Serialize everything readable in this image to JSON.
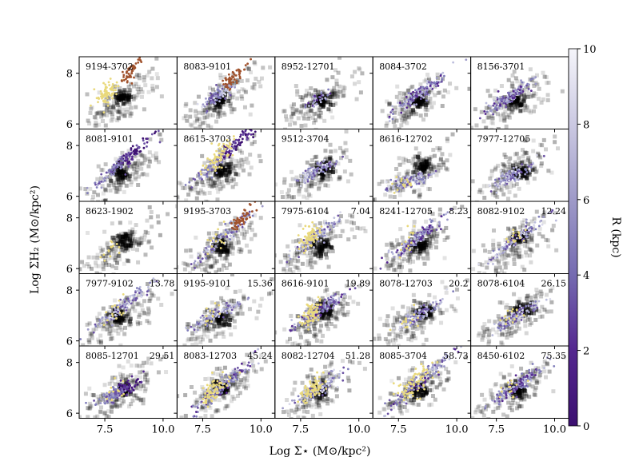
{
  "figure": {
    "xlabel": "Log Σ⋆ (M⊙/kpc²)",
    "ylabel": "Log ΣH₂ (M⊙/kpc²)",
    "colorbar_label": "R (kpc)",
    "colorbar_ticks": [
      "0",
      "2",
      "4",
      "6",
      "8",
      "10"
    ],
    "colors": {
      "background_density": "#000000",
      "highlight_yellow": "#e9d97c",
      "highlight_brown": "#a0522d",
      "colormap_low": "#3b0f70",
      "colormap_high": "#f5f5fa"
    }
  },
  "chart_data": {
    "type": "scatter",
    "layout": "5x5 grid of panels sharing axes",
    "xlim": [
      6.4,
      10.6
    ],
    "ylim": [
      5.8,
      8.65
    ],
    "xticks": [
      "7.5",
      "10.0"
    ],
    "yticks": [
      "6",
      "8"
    ],
    "colorbar": {
      "quantity": "R (kpc)",
      "range": [
        0,
        10
      ],
      "colormap": "purples (dark = 0, light = 10)"
    },
    "panels": [
      {
        "id": "9194-3702",
        "value": "",
        "center": [
          7.9,
          7.3
        ],
        "slope": 0.9,
        "width": 0.45,
        "dense": [
          8.2,
          7.0
        ],
        "brown": true,
        "yellow": "strong",
        "purple": "none"
      },
      {
        "id": "8083-9101",
        "value": "",
        "center": [
          8.1,
          7.1
        ],
        "slope": 0.6,
        "width": 0.35,
        "dense": [
          8.2,
          6.9
        ],
        "brown": true,
        "yellow": "none",
        "purple": "light"
      },
      {
        "id": "8952-12701",
        "value": "",
        "center": [
          8.2,
          6.95
        ],
        "slope": 0.5,
        "width": 0.3,
        "dense": [
          8.4,
          6.9
        ],
        "brown": false,
        "yellow": "none",
        "purple": "sparse"
      },
      {
        "id": "8084-3702",
        "value": "",
        "center": [
          8.4,
          7.2
        ],
        "slope": 0.7,
        "width": 0.55,
        "dense": [
          8.4,
          6.9
        ],
        "brown": false,
        "yellow": "none",
        "purple": "medium"
      },
      {
        "id": "8156-3701",
        "value": "",
        "center": [
          8.1,
          7.1
        ],
        "slope": 0.6,
        "width": 0.5,
        "dense": [
          8.3,
          6.9
        ],
        "brown": false,
        "yellow": "none",
        "purple": "medium"
      },
      {
        "id": "8081-9101",
        "value": "",
        "center": [
          8.3,
          7.4
        ],
        "slope": 0.8,
        "width": 0.55,
        "dense": [
          8.2,
          6.9
        ],
        "brown": false,
        "yellow": "none",
        "purple": "dark"
      },
      {
        "id": "8615-3703",
        "value": "",
        "center": [
          8.4,
          7.6
        ],
        "slope": 0.8,
        "width": 0.7,
        "dense": [
          8.4,
          7.0
        ],
        "brown": false,
        "yellow": "strong",
        "purple": "dark"
      },
      {
        "id": "9512-3704",
        "value": "",
        "center": [
          8.2,
          7.0
        ],
        "slope": 0.5,
        "width": 0.4,
        "dense": [
          8.5,
          7.1
        ],
        "brown": false,
        "yellow": "none",
        "purple": "light"
      },
      {
        "id": "8616-12702",
        "value": "",
        "center": [
          8.0,
          6.6
        ],
        "slope": 0.3,
        "width": 0.5,
        "dense": [
          8.6,
          7.2
        ],
        "brown": false,
        "yellow": "few",
        "purple": "light"
      },
      {
        "id": "7977-12705",
        "value": "",
        "center": [
          8.1,
          6.8
        ],
        "slope": 0.5,
        "width": 0.45,
        "dense": [
          8.6,
          7.0
        ],
        "brown": false,
        "yellow": "none",
        "purple": "light"
      },
      {
        "id": "8623-1902",
        "value": "",
        "center": [
          8.0,
          6.8
        ],
        "slope": 0.4,
        "width": 0.3,
        "dense": [
          8.3,
          7.1
        ],
        "brown": false,
        "yellow": "few",
        "purple": "none"
      },
      {
        "id": "9195-3703",
        "value": "",
        "center": [
          8.5,
          7.3
        ],
        "slope": 0.8,
        "width": 0.65,
        "dense": [
          8.3,
          6.9
        ],
        "brown": true,
        "yellow": "few",
        "purple": "light"
      },
      {
        "id": "7975-6104",
        "value": "7.04",
        "center": [
          8.2,
          7.3
        ],
        "slope": 0.8,
        "width": 0.55,
        "dense": [
          8.4,
          6.9
        ],
        "brown": false,
        "yellow": "strong",
        "purple": "light"
      },
      {
        "id": "8241-12705",
        "value": "8.23",
        "center": [
          8.3,
          7.2
        ],
        "slope": 0.7,
        "width": 0.6,
        "dense": [
          8.4,
          6.9
        ],
        "brown": false,
        "yellow": "few",
        "purple": "medium"
      },
      {
        "id": "8082-9102",
        "value": "12.24",
        "center": [
          8.4,
          7.2
        ],
        "slope": 0.7,
        "width": 0.6,
        "dense": [
          8.5,
          7.2
        ],
        "brown": false,
        "yellow": "few",
        "purple": "light"
      },
      {
        "id": "7977-9102",
        "value": "13.78",
        "center": [
          8.2,
          7.3
        ],
        "slope": 0.7,
        "width": 0.6,
        "dense": [
          8.2,
          7.0
        ],
        "brown": false,
        "yellow": "few",
        "purple": "light"
      },
      {
        "id": "9195-9101",
        "value": "15.36",
        "center": [
          8.2,
          7.1
        ],
        "slope": 0.5,
        "width": 0.6,
        "dense": [
          8.3,
          6.9
        ],
        "brown": false,
        "yellow": "few",
        "purple": "light"
      },
      {
        "id": "8616-9101",
        "value": "19.89",
        "center": [
          8.3,
          7.2
        ],
        "slope": 0.6,
        "width": 0.6,
        "dense": [
          8.6,
          7.2
        ],
        "brown": false,
        "yellow": "strong",
        "purple": "medium"
      },
      {
        "id": "8078-12703",
        "value": "20.2",
        "center": [
          8.3,
          7.0
        ],
        "slope": 0.6,
        "width": 0.5,
        "dense": [
          8.6,
          7.1
        ],
        "brown": false,
        "yellow": "few",
        "purple": "light"
      },
      {
        "id": "8078-6104",
        "value": "26.15",
        "center": [
          8.4,
          7.0
        ],
        "slope": 0.6,
        "width": 0.5,
        "dense": [
          8.7,
          7.3
        ],
        "brown": false,
        "yellow": "few",
        "purple": "light"
      },
      {
        "id": "8085-12701",
        "value": "29.51",
        "center": [
          8.2,
          6.9
        ],
        "slope": 0.5,
        "width": 0.4,
        "dense": [
          8.3,
          6.9
        ],
        "brown": false,
        "yellow": "few",
        "purple": "dark"
      },
      {
        "id": "8083-12703",
        "value": "45.24",
        "center": [
          8.3,
          7.0
        ],
        "slope": 0.8,
        "width": 0.6,
        "dense": [
          8.3,
          7.0
        ],
        "brown": false,
        "yellow": "strong",
        "purple": "medium"
      },
      {
        "id": "8082-12704",
        "value": "51.28",
        "center": [
          8.3,
          7.0
        ],
        "slope": 0.6,
        "width": 0.55,
        "dense": [
          8.3,
          6.9
        ],
        "brown": false,
        "yellow": "strong",
        "purple": "light"
      },
      {
        "id": "8085-3704",
        "value": "58.73",
        "center": [
          8.5,
          7.3
        ],
        "slope": 0.8,
        "width": 0.8,
        "dense": [
          8.4,
          6.9
        ],
        "brown": false,
        "yellow": "strong",
        "purple": "medium"
      },
      {
        "id": "8450-6102",
        "value": "75.35",
        "center": [
          8.4,
          7.1
        ],
        "slope": 0.7,
        "width": 0.55,
        "dense": [
          8.4,
          6.9
        ],
        "brown": false,
        "yellow": "few",
        "purple": "medium"
      }
    ]
  }
}
